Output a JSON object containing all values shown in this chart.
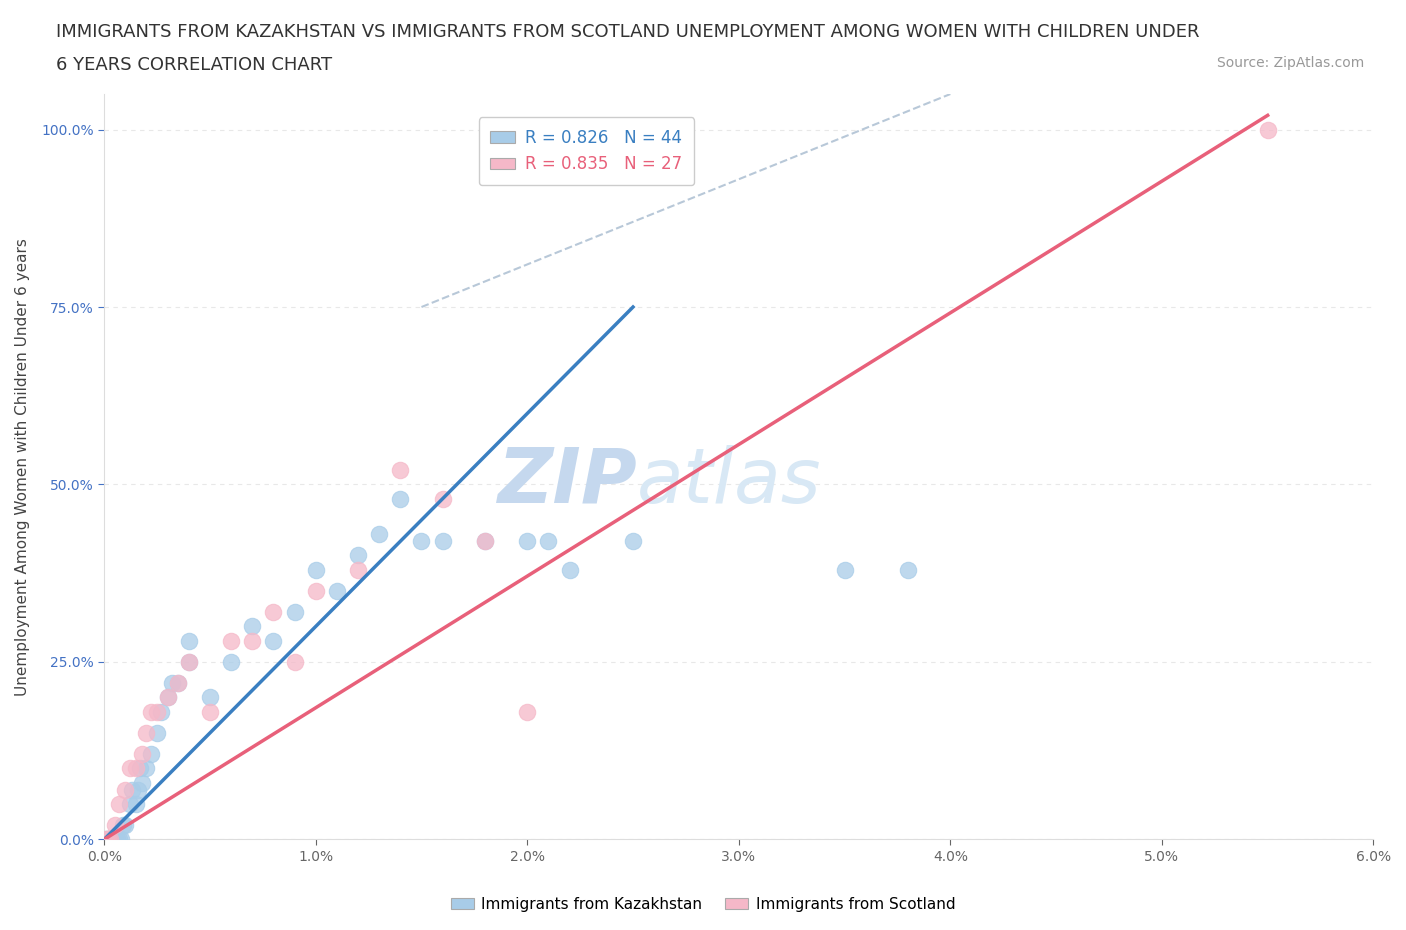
{
  "title_line1": "IMMIGRANTS FROM KAZAKHSTAN VS IMMIGRANTS FROM SCOTLAND UNEMPLOYMENT AMONG WOMEN WITH CHILDREN UNDER",
  "title_line2": "6 YEARS CORRELATION CHART",
  "source": "Source: ZipAtlas.com",
  "ylabel": "Unemployment Among Women with Children Under 6 years",
  "xlim": [
    0.0,
    0.06
  ],
  "ylim": [
    0.0,
    1.05
  ],
  "xticks": [
    0.0,
    0.01,
    0.02,
    0.03,
    0.04,
    0.05,
    0.06
  ],
  "xticklabels": [
    "0.0%",
    "1.0%",
    "2.0%",
    "3.0%",
    "4.0%",
    "5.0%",
    "6.0%"
  ],
  "yticks": [
    0.0,
    0.25,
    0.5,
    0.75,
    1.0
  ],
  "yticklabels": [
    "0.0%",
    "25.0%",
    "50.0%",
    "75.0%",
    "100.0%"
  ],
  "kazakhstan_R": 0.826,
  "kazakhstan_N": 44,
  "scotland_R": 0.835,
  "scotland_N": 27,
  "kazakhstan_color": "#a8cce8",
  "scotland_color": "#f5b8c8",
  "kazakhstan_line_color": "#3a7fc1",
  "scotland_line_color": "#e8607a",
  "ref_line_color": "#b8c8d8",
  "background_color": "#ffffff",
  "grid_color": "#e8e8e8",
  "watermark_color": "#ddeaf5",
  "tick_color_y": "#4472c4",
  "tick_color_x": "#666666",
  "title_fontsize": 13,
  "source_fontsize": 10,
  "axis_label_fontsize": 11,
  "tick_fontsize": 10,
  "legend_fontsize": 12,
  "kaz_line_x0": 0.0,
  "kaz_line_y0": 0.0,
  "kaz_line_x1": 0.025,
  "kaz_line_y1": 0.75,
  "scot_line_x0": 0.0,
  "scot_line_y0": 0.0,
  "scot_line_x1": 0.055,
  "scot_line_y1": 1.02,
  "ref_line_x0": 0.015,
  "ref_line_y0": 0.75,
  "ref_line_x1": 0.04,
  "ref_line_y1": 1.05,
  "kazakhstan_points": [
    [
      0.0001,
      0.0
    ],
    [
      0.0002,
      0.0
    ],
    [
      0.0003,
      0.0
    ],
    [
      0.0004,
      0.0
    ],
    [
      0.0005,
      0.0
    ],
    [
      0.0006,
      0.0
    ],
    [
      0.0007,
      0.0
    ],
    [
      0.0008,
      0.0
    ],
    [
      0.0009,
      0.02
    ],
    [
      0.001,
      0.02
    ],
    [
      0.0012,
      0.05
    ],
    [
      0.0013,
      0.07
    ],
    [
      0.0015,
      0.05
    ],
    [
      0.0016,
      0.07
    ],
    [
      0.0017,
      0.1
    ],
    [
      0.0018,
      0.08
    ],
    [
      0.002,
      0.1
    ],
    [
      0.0022,
      0.12
    ],
    [
      0.0025,
      0.15
    ],
    [
      0.0027,
      0.18
    ],
    [
      0.003,
      0.2
    ],
    [
      0.0032,
      0.22
    ],
    [
      0.0035,
      0.22
    ],
    [
      0.004,
      0.25
    ],
    [
      0.004,
      0.28
    ],
    [
      0.005,
      0.2
    ],
    [
      0.006,
      0.25
    ],
    [
      0.007,
      0.3
    ],
    [
      0.008,
      0.28
    ],
    [
      0.009,
      0.32
    ],
    [
      0.01,
      0.38
    ],
    [
      0.011,
      0.35
    ],
    [
      0.012,
      0.4
    ],
    [
      0.013,
      0.43
    ],
    [
      0.014,
      0.48
    ],
    [
      0.015,
      0.42
    ],
    [
      0.016,
      0.42
    ],
    [
      0.018,
      0.42
    ],
    [
      0.02,
      0.42
    ],
    [
      0.021,
      0.42
    ],
    [
      0.022,
      0.38
    ],
    [
      0.025,
      0.42
    ],
    [
      0.035,
      0.38
    ],
    [
      0.038,
      0.38
    ]
  ],
  "scotland_points": [
    [
      0.0001,
      0.0
    ],
    [
      0.0002,
      0.0
    ],
    [
      0.0003,
      0.0
    ],
    [
      0.0005,
      0.02
    ],
    [
      0.0007,
      0.05
    ],
    [
      0.001,
      0.07
    ],
    [
      0.0012,
      0.1
    ],
    [
      0.0015,
      0.1
    ],
    [
      0.0018,
      0.12
    ],
    [
      0.002,
      0.15
    ],
    [
      0.0022,
      0.18
    ],
    [
      0.0025,
      0.18
    ],
    [
      0.003,
      0.2
    ],
    [
      0.0035,
      0.22
    ],
    [
      0.004,
      0.25
    ],
    [
      0.005,
      0.18
    ],
    [
      0.006,
      0.28
    ],
    [
      0.007,
      0.28
    ],
    [
      0.008,
      0.32
    ],
    [
      0.009,
      0.25
    ],
    [
      0.01,
      0.35
    ],
    [
      0.012,
      0.38
    ],
    [
      0.014,
      0.52
    ],
    [
      0.016,
      0.48
    ],
    [
      0.018,
      0.42
    ],
    [
      0.02,
      0.18
    ],
    [
      0.055,
      1.0
    ]
  ]
}
